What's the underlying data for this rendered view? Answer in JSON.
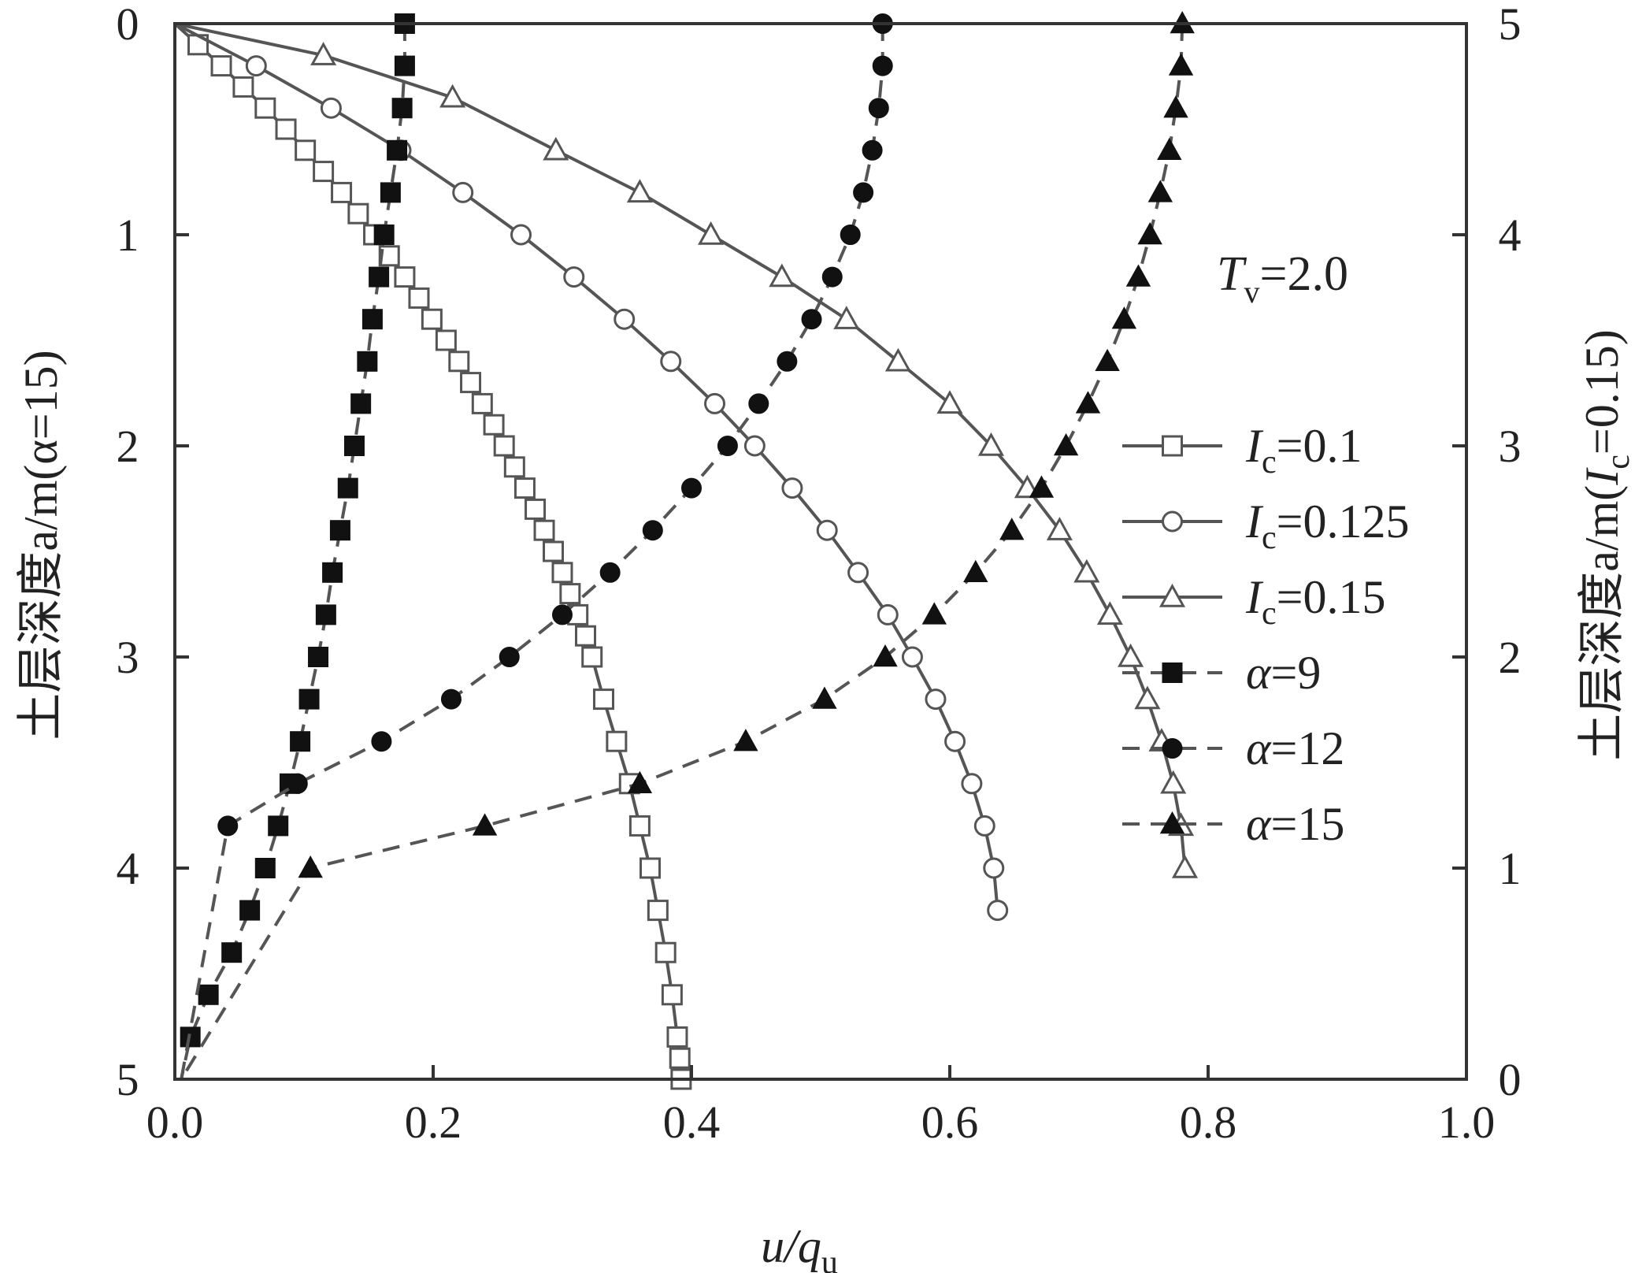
{
  "chart_data": {
    "type": "line",
    "annotation": {
      "symbol": "T",
      "sub": "v",
      "value": "=2.0"
    },
    "xaxis": {
      "label_main": "u/q",
      "label_sub": "u",
      "lim": [
        0,
        1.0
      ],
      "ticks": [
        0.0,
        0.2,
        0.4,
        0.6,
        0.8,
        1.0
      ],
      "tick_labels": [
        "0.0",
        "0.2",
        "0.4",
        "0.6",
        "0.8",
        "1.0"
      ]
    },
    "yaxis_left": {
      "label": "土层深度a/m(α=15)",
      "lim": [
        0,
        5
      ],
      "inverted": true,
      "ticks": [
        0,
        1,
        2,
        3,
        4,
        5
      ],
      "tick_labels": [
        "0",
        "1",
        "2",
        "3",
        "4",
        "5"
      ]
    },
    "yaxis_right": {
      "label_prefix": "土层深度a/m(",
      "label_var": "I",
      "label_sub": "c",
      "label_suffix": "=0.15)",
      "lim": [
        0,
        5
      ],
      "inverted": false,
      "ticks": [
        0,
        1,
        2,
        3,
        4,
        5
      ],
      "tick_labels": [
        "0",
        "1",
        "2",
        "3",
        "4",
        "5"
      ]
    },
    "legend_position": "right",
    "series": [
      {
        "name": "0.1",
        "name_var": "I",
        "name_sub": "c",
        "name_prefix": "=",
        "marker": "square-open",
        "line": "solid",
        "color": "#555555",
        "x": [
          0.0,
          0.018,
          0.036,
          0.053,
          0.07,
          0.086,
          0.101,
          0.115,
          0.129,
          0.142,
          0.154,
          0.166,
          0.178,
          0.189,
          0.199,
          0.21,
          0.22,
          0.229,
          0.238,
          0.247,
          0.255,
          0.263,
          0.271,
          0.279,
          0.286,
          0.293,
          0.3,
          0.306,
          0.312,
          0.318,
          0.323,
          0.332,
          0.342,
          0.352,
          0.36,
          0.368,
          0.374,
          0.38,
          0.385,
          0.389,
          0.391,
          0.392
        ],
        "y": [
          0.0,
          0.1,
          0.2,
          0.3,
          0.4,
          0.5,
          0.6,
          0.7,
          0.8,
          0.9,
          1.0,
          1.1,
          1.2,
          1.3,
          1.4,
          1.5,
          1.6,
          1.7,
          1.8,
          1.9,
          2.0,
          2.1,
          2.2,
          2.3,
          2.4,
          2.5,
          2.6,
          2.7,
          2.8,
          2.9,
          3.0,
          3.2,
          3.4,
          3.6,
          3.8,
          4.0,
          4.2,
          4.4,
          4.6,
          4.8,
          4.9,
          5.0
        ]
      },
      {
        "name": "0.125",
        "name_var": "I",
        "name_sub": "c",
        "name_prefix": "=",
        "marker": "circle-open",
        "line": "solid",
        "color": "#555555",
        "x": [
          0.0,
          0.063,
          0.121,
          0.175,
          0.223,
          0.268,
          0.309,
          0.348,
          0.384,
          0.418,
          0.449,
          0.478,
          0.505,
          0.529,
          0.552,
          0.571,
          0.589,
          0.604,
          0.617,
          0.627,
          0.634,
          0.637
        ],
        "y": [
          0.0,
          0.2,
          0.4,
          0.6,
          0.8,
          1.0,
          1.2,
          1.4,
          1.6,
          1.8,
          2.0,
          2.2,
          2.4,
          2.6,
          2.8,
          3.0,
          3.2,
          3.4,
          3.6,
          3.8,
          4.0,
          4.2
        ]
      },
      {
        "name": "0.15",
        "name_var": "I",
        "name_sub": "c",
        "name_prefix": "=",
        "marker": "triangle-open",
        "line": "solid",
        "color": "#555555",
        "x": [
          0.0,
          0.115,
          0.215,
          0.295,
          0.36,
          0.415,
          0.47,
          0.52,
          0.56,
          0.6,
          0.632,
          0.66,
          0.685,
          0.706,
          0.724,
          0.74,
          0.753,
          0.764,
          0.773,
          0.779,
          0.782
        ],
        "y": [
          0.0,
          0.15,
          0.35,
          0.6,
          0.8,
          1.0,
          1.2,
          1.4,
          1.6,
          1.8,
          2.0,
          2.2,
          2.4,
          2.6,
          2.8,
          3.0,
          3.2,
          3.4,
          3.6,
          3.8,
          4.0
        ]
      },
      {
        "name": "9",
        "name_var": "α",
        "name_prefix": "=",
        "marker": "square-filled",
        "line": "dashed",
        "color": "#111111",
        "x": [
          0.178,
          0.178,
          0.176,
          0.172,
          0.167,
          0.162,
          0.158,
          0.153,
          0.149,
          0.144,
          0.139,
          0.134,
          0.128,
          0.122,
          0.117,
          0.111,
          0.104,
          0.097,
          0.089,
          0.08,
          0.07,
          0.058,
          0.044,
          0.026,
          0.012
        ],
        "y": [
          0.0,
          0.2,
          0.4,
          0.6,
          0.8,
          1.0,
          1.2,
          1.4,
          1.6,
          1.8,
          2.0,
          2.2,
          2.4,
          2.6,
          2.8,
          3.0,
          3.2,
          3.4,
          3.6,
          3.8,
          4.0,
          4.2,
          4.4,
          4.6,
          4.8
        ]
      },
      {
        "name": "12",
        "name_var": "α",
        "name_prefix": "=",
        "marker": "circle-filled",
        "line": "dashed",
        "color": "#111111",
        "x": [
          0.548,
          0.548,
          0.545,
          0.54,
          0.533,
          0.523,
          0.509,
          0.493,
          0.474,
          0.452,
          0.428,
          0.4,
          0.37,
          0.337,
          0.3,
          0.259,
          0.214,
          0.16,
          0.095,
          0.041
        ],
        "y": [
          0.0,
          0.2,
          0.4,
          0.6,
          0.8,
          1.0,
          1.2,
          1.4,
          1.6,
          1.8,
          2.0,
          2.2,
          2.4,
          2.6,
          2.8,
          3.0,
          3.2,
          3.4,
          3.6,
          3.8
        ]
      },
      {
        "name": "15",
        "name_var": "α",
        "name_prefix": "=",
        "marker": "triangle-filled",
        "line": "dashed",
        "color": "#111111",
        "x": [
          0.78,
          0.779,
          0.775,
          0.77,
          0.763,
          0.755,
          0.746,
          0.735,
          0.722,
          0.707,
          0.69,
          0.671,
          0.648,
          0.62,
          0.588,
          0.55,
          0.503,
          0.442,
          0.36,
          0.24,
          0.105
        ],
        "y": [
          0.0,
          0.2,
          0.4,
          0.6,
          0.8,
          1.0,
          1.2,
          1.4,
          1.6,
          1.8,
          2.0,
          2.2,
          2.4,
          2.6,
          2.8,
          3.0,
          3.2,
          3.4,
          3.6,
          3.8,
          4.0
        ]
      }
    ]
  }
}
